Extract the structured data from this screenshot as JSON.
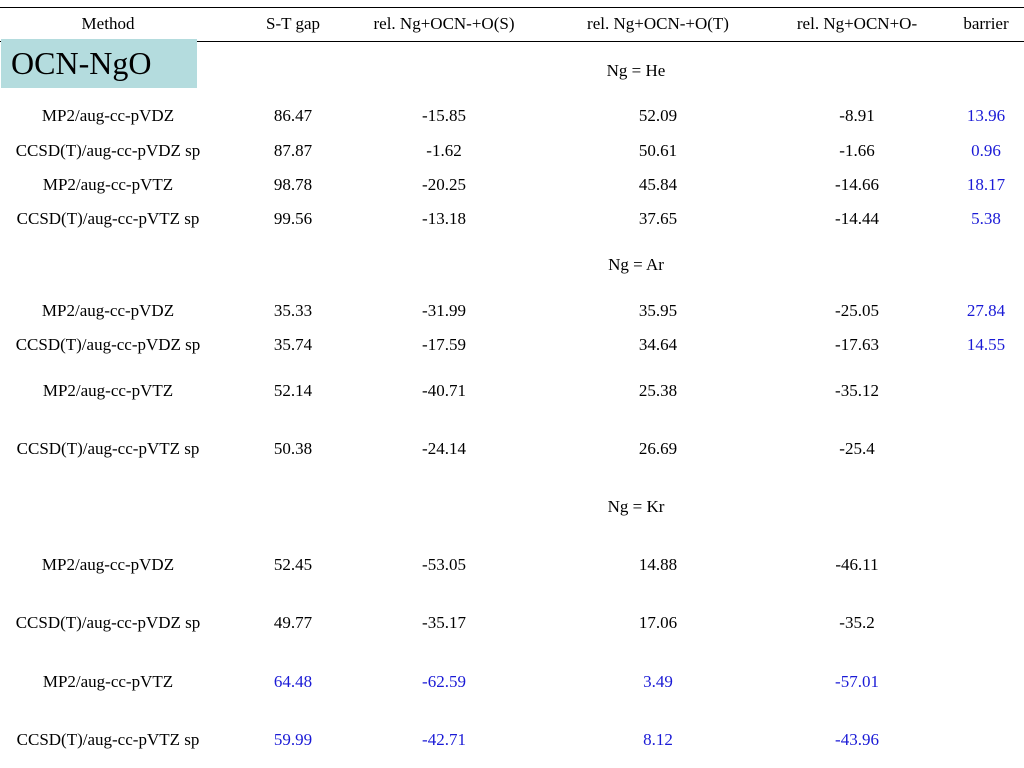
{
  "headers": [
    "Method",
    "S-T gap",
    "rel. Ng+OCN-+O(S)",
    "rel. Ng+OCN-+O(T)",
    "rel. Ng+OCN+O-",
    "barrier"
  ],
  "badge": "OCN-NgO",
  "sections": [
    {
      "label": "Ng = He",
      "rows": [
        {
          "cells": [
            "MP2/aug-cc-pVDZ",
            "86.47",
            "-15.85",
            "52.09",
            "-8.91",
            "13.96"
          ],
          "blue": [
            5
          ]
        },
        {
          "cells": [
            "CCSD(T)/aug-cc-pVDZ sp",
            "87.87",
            "-1.62",
            "50.61",
            "-1.66",
            "0.96"
          ],
          "blue": [
            5
          ]
        },
        {
          "cells": [
            "MP2/aug-cc-pVTZ",
            "98.78",
            "-20.25",
            "45.84",
            "-14.66",
            "18.17"
          ],
          "blue": [
            5
          ]
        },
        {
          "cells": [
            "CCSD(T)/aug-cc-pVTZ sp",
            "99.56",
            "-13.18",
            "37.65",
            "-14.44",
            "5.38"
          ],
          "blue": [
            5
          ]
        }
      ]
    },
    {
      "label": "Ng = Ar",
      "rows": [
        {
          "cells": [
            "MP2/aug-cc-pVDZ",
            "35.33",
            "-31.99",
            "35.95",
            "-25.05",
            "27.84"
          ],
          "blue": [
            5
          ]
        },
        {
          "cells": [
            "CCSD(T)/aug-cc-pVDZ sp",
            "35.74",
            "-17.59",
            "34.64",
            "-17.63",
            "14.55"
          ],
          "blue": [
            5
          ]
        },
        {
          "cells": [
            "MP2/aug-cc-pVTZ",
            "52.14",
            "-40.71",
            "25.38",
            "-35.12",
            ""
          ],
          "blue": []
        },
        {
          "cells": [
            "CCSD(T)/aug-cc-pVTZ sp",
            "50.38",
            "-24.14",
            "26.69",
            "-25.4",
            ""
          ],
          "blue": []
        }
      ]
    },
    {
      "label": "Ng = Kr",
      "rows": [
        {
          "cells": [
            "MP2/aug-cc-pVDZ",
            "52.45",
            "-53.05",
            "14.88",
            "-46.11",
            ""
          ],
          "blue": []
        },
        {
          "cells": [
            "CCSD(T)/aug-cc-pVDZ sp",
            "49.77",
            "-35.17",
            "17.06",
            "-35.2",
            ""
          ],
          "blue": []
        },
        {
          "cells": [
            "MP2/aug-cc-pVTZ",
            "64.48",
            "-62.59",
            "3.49",
            "-57.01",
            ""
          ],
          "blue": [
            1,
            2,
            3,
            4
          ]
        },
        {
          "cells": [
            "CCSD(T)/aug-cc-pVTZ sp",
            "59.99",
            "-42.71",
            "8.12",
            "-43.96",
            ""
          ],
          "blue": [
            1,
            2,
            3,
            4
          ]
        }
      ]
    }
  ],
  "colors": {
    "blue_value": "#1a1ad6",
    "badge_bg": "#b4dcde"
  }
}
